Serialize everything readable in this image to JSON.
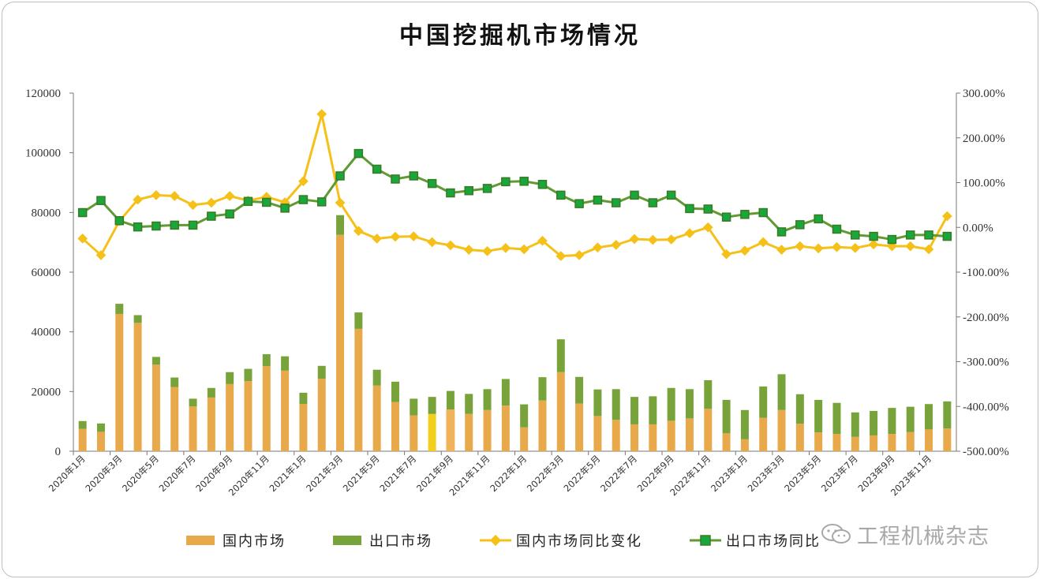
{
  "chart_data": {
    "type": "bar+line",
    "title": "中国挖掘机市场情况",
    "x_tick_labels": [
      "2020年1月",
      "2020年3月",
      "2020年5月",
      "2020年7月",
      "2020年9月",
      "2020年11月",
      "2021年1月",
      "2021年3月",
      "2021年5月",
      "2021年7月",
      "2021年9月",
      "2021年11月",
      "2022年1月",
      "2022年3月",
      "2022年5月",
      "2022年7月",
      "2022年9月",
      "2022年11月",
      "2023年1月",
      "2023年3月",
      "2023年5月",
      "2023年7月",
      "2023年9月",
      "2023年11月"
    ],
    "x": [
      "2020-01",
      "2020-02",
      "2020-03",
      "2020-04",
      "2020-05",
      "2020-06",
      "2020-07",
      "2020-08",
      "2020-09",
      "2020-10",
      "2020-11",
      "2020-12",
      "2021-01",
      "2021-02",
      "2021-03",
      "2021-04",
      "2021-05",
      "2021-06",
      "2021-07",
      "2021-08",
      "2021-09",
      "2021-10",
      "2021-11",
      "2021-12",
      "2022-01",
      "2022-02",
      "2022-03",
      "2022-04",
      "2022-05",
      "2022-06",
      "2022-07",
      "2022-08",
      "2022-09",
      "2022-10",
      "2022-11",
      "2022-12",
      "2023-01",
      "2023-02",
      "2023-03",
      "2023-04",
      "2023-05",
      "2023-06",
      "2023-07",
      "2023-08",
      "2023-09",
      "2023-10",
      "2023-11",
      "2023-12"
    ],
    "left_axis": {
      "min": 0,
      "max": 120000,
      "ticks": [
        "0",
        "20000",
        "40000",
        "60000",
        "80000",
        "100000",
        "120000"
      ]
    },
    "right_axis": {
      "min": -500,
      "max": 300,
      "unit": "%",
      "ticks": [
        "-500.00%",
        "-400.00%",
        "-300.00%",
        "-200.00%",
        "-100.00%",
        "0.00%",
        "100.00%",
        "200.00%",
        "300.00%"
      ]
    },
    "series": [
      {
        "name": "国内市场",
        "kind": "bar-stacked",
        "color": "#e8a94a",
        "values": [
          7500,
          6500,
          46000,
          43000,
          29000,
          21500,
          15000,
          18000,
          22500,
          23500,
          28500,
          27000,
          15800,
          24300,
          72500,
          41000,
          22000,
          16500,
          12000,
          12500,
          14000,
          12500,
          13800,
          15300,
          8000,
          17000,
          26500,
          16000,
          11800,
          10500,
          9000,
          9000,
          10200,
          11000,
          14200,
          6000,
          4000,
          11200,
          13800,
          9200,
          6300,
          5800,
          4800,
          5300,
          5800,
          6400,
          7300,
          7600
        ]
      },
      {
        "name": "出口市场",
        "kind": "bar-stacked",
        "color": "#77a33a",
        "values": [
          2600,
          2800,
          3400,
          2600,
          2600,
          3200,
          2600,
          3200,
          4000,
          4100,
          4000,
          4800,
          3800,
          4300,
          6600,
          5500,
          5300,
          6800,
          5600,
          5700,
          6200,
          6700,
          7000,
          8900,
          7700,
          7800,
          11000,
          8900,
          8900,
          10300,
          9200,
          9400,
          11000,
          9800,
          9600,
          11200,
          9800,
          10500,
          12000,
          9900,
          10900,
          10400,
          8200,
          8200,
          8700,
          8500,
          8500,
          9100
        ]
      },
      {
        "name": "国内市场同比变化",
        "kind": "line",
        "color": "#f5c018",
        "values": [
          -25,
          -62,
          14,
          62,
          72,
          70,
          50,
          55,
          70,
          60,
          68,
          56,
          103,
          253,
          55,
          -8,
          -25,
          -21,
          -20,
          -33,
          -40,
          -50,
          -53,
          -46,
          -49,
          -30,
          -64,
          -62,
          -45,
          -39,
          -26,
          -28,
          -27,
          -13,
          0,
          -60,
          -52,
          -33,
          -50,
          -42,
          -47,
          -44,
          -46,
          -38,
          -42,
          -42,
          -49,
          25
        ]
      },
      {
        "name": "出口市场同比",
        "kind": "line",
        "color": "#5f9a32",
        "values": [
          33,
          60,
          15,
          1,
          3,
          5,
          5,
          25,
          30,
          58,
          56,
          43,
          62,
          57,
          115,
          165,
          130,
          108,
          115,
          98,
          77,
          82,
          87,
          102,
          103,
          96,
          72,
          53,
          61,
          55,
          72,
          55,
          72,
          42,
          41,
          23,
          29,
          33,
          -10,
          6,
          19,
          -4,
          -17,
          -20,
          -27,
          -17,
          -17,
          -20
        ]
      }
    ]
  },
  "legend": {
    "domestic": "国内市场",
    "export": "出口市场",
    "domestic_yoy": "国内市场同比变化",
    "export_yoy": "出口市场同比"
  },
  "watermark": "工程机械杂志",
  "colors": {
    "domestic": "#e8a94a",
    "export": "#77a33a",
    "domestic_line": "#f5c018",
    "export_line": "#5f9a32",
    "export_marker": "#19a63c"
  }
}
